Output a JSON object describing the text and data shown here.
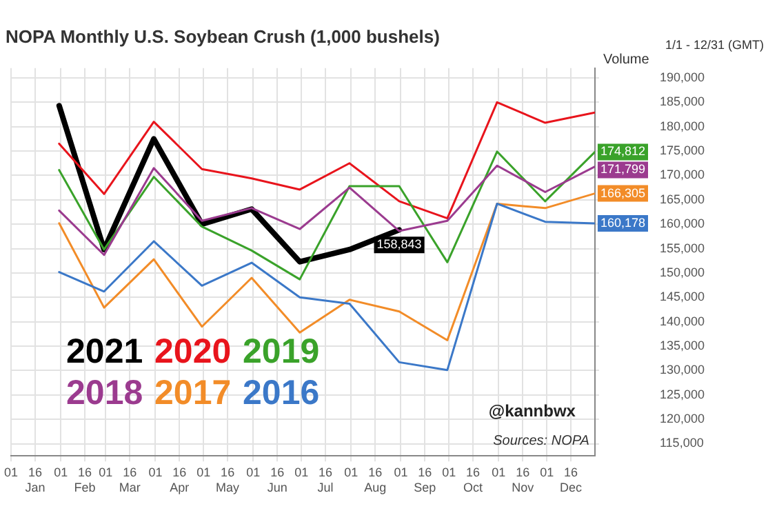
{
  "chart_data": {
    "type": "line",
    "title": "NOPA Monthly U.S. Soybean Crush (1,000 bushels)",
    "ylabel": "Volume",
    "x": [
      "--01-31",
      "--02-28",
      "--03-31",
      "--04-30",
      "--05-31",
      "--06-30",
      "--07-31",
      "--08-31",
      "--09-30",
      "--10-31",
      "--11-30",
      "--12-31"
    ],
    "series": [
      {
        "name": "2021",
        "color": "#000000",
        "values": [
          184300,
          154800,
          177500,
          160000,
          163100,
          152300,
          154800,
          158843,
          null,
          null,
          null,
          null
        ],
        "value_labels": [
          null,
          null,
          null,
          null,
          null,
          null,
          null,
          "158,843",
          null,
          null,
          null,
          null
        ]
      },
      {
        "name": "2020",
        "color": "#e8141c",
        "values": [
          176500,
          166200,
          181000,
          171300,
          169400,
          167100,
          172500,
          164700,
          161200,
          185000,
          180800,
          182900
        ]
      },
      {
        "name": "2019",
        "color": "#3aa22a",
        "values": [
          171100,
          154800,
          169700,
          159500,
          154600,
          148700,
          167800,
          167800,
          152200,
          174900,
          164700,
          174812
        ],
        "value_labels": [
          null,
          null,
          null,
          null,
          null,
          null,
          null,
          null,
          null,
          null,
          null,
          "174,812"
        ]
      },
      {
        "name": "2018",
        "color": "#9b3b8f",
        "values": [
          162800,
          153700,
          171500,
          160700,
          163300,
          159000,
          167500,
          158600,
          160700,
          172000,
          166600,
          171799
        ],
        "value_labels": [
          null,
          null,
          null,
          null,
          null,
          null,
          null,
          null,
          null,
          null,
          null,
          "171,799"
        ]
      },
      {
        "name": "2017",
        "color": "#f28c28",
        "values": [
          160200,
          142900,
          152800,
          139000,
          149000,
          137800,
          144500,
          142100,
          136200,
          164200,
          163300,
          166305
        ],
        "value_labels": [
          null,
          null,
          null,
          null,
          null,
          null,
          null,
          null,
          null,
          null,
          null,
          "166,305"
        ]
      },
      {
        "name": "2016",
        "color": "#3b78c8",
        "values": [
          150200,
          146200,
          156500,
          147400,
          152100,
          145000,
          143700,
          131700,
          130100,
          164200,
          160500,
          160178
        ],
        "value_labels": [
          null,
          null,
          null,
          null,
          null,
          null,
          null,
          null,
          null,
          null,
          null,
          "160,178"
        ]
      }
    ],
    "xlim": [
      "--01-01",
      "--12-31"
    ],
    "xticks": [
      {
        "value": "--01-01",
        "label": "01"
      },
      {
        "value": "--01-16",
        "label": "16\nJan"
      },
      {
        "value": "--02-01",
        "label": "01"
      },
      {
        "value": "--02-16",
        "label": "16\nFeb"
      },
      {
        "value": "--03-01",
        "label": "01"
      },
      {
        "value": "--03-16",
        "label": "16\nMar"
      },
      {
        "value": "--04-01",
        "label": "01"
      },
      {
        "value": "--04-16",
        "label": "16\nApr"
      },
      {
        "value": "--05-01",
        "label": "01"
      },
      {
        "value": "--05-16",
        "label": "16\nMay"
      },
      {
        "value": "--06-01",
        "label": "01"
      },
      {
        "value": "--06-16",
        "label": "16\nJun"
      },
      {
        "value": "--07-01",
        "label": "01"
      },
      {
        "value": "--07-16",
        "label": "16\nJul"
      },
      {
        "value": "--08-01",
        "label": "01"
      },
      {
        "value": "--08-16",
        "label": "16\nAug"
      },
      {
        "value": "--09-01",
        "label": "01"
      },
      {
        "value": "--09-16",
        "label": "16\nSep"
      },
      {
        "value": "--10-01",
        "label": "01"
      },
      {
        "value": "--10-16",
        "label": "16\nOct"
      },
      {
        "value": "--11-01",
        "label": "01"
      },
      {
        "value": "--11-16",
        "label": "16\nNov"
      },
      {
        "value": "--12-01",
        "label": "01"
      },
      {
        "value": "--12-16",
        "label": "16\nDec"
      }
    ],
    "ylim": [
      112500,
      192000
    ],
    "yticks": [
      {
        "value": 115000,
        "label": "115,000"
      },
      {
        "value": 120000,
        "label": "120,000"
      },
      {
        "value": 125000,
        "label": "125,000"
      },
      {
        "value": 130000,
        "label": "130,000"
      },
      {
        "value": 135000,
        "label": "135,000"
      },
      {
        "value": 140000,
        "label": "140,000"
      },
      {
        "value": 145000,
        "label": "145,000"
      },
      {
        "value": 150000,
        "label": "150,000"
      },
      {
        "value": 155000,
        "label": "155,000"
      },
      {
        "value": 160000,
        "label": "160,000"
      },
      {
        "value": 165000,
        "label": "165,000"
      },
      {
        "value": 170000,
        "label": "170,000"
      },
      {
        "value": 175000,
        "label": "175,000"
      },
      {
        "value": 180000,
        "label": "180,000"
      },
      {
        "value": 185000,
        "label": "185,000"
      },
      {
        "value": 190000,
        "label": "190,000"
      }
    ],
    "grid": true,
    "legend": "bottom left",
    "marker": "none",
    "line_style": "solid",
    "annotations": [
      "1/1 - 12/31 (GMT)",
      "@kannbwx",
      "Sources: NOPA"
    ]
  }
}
